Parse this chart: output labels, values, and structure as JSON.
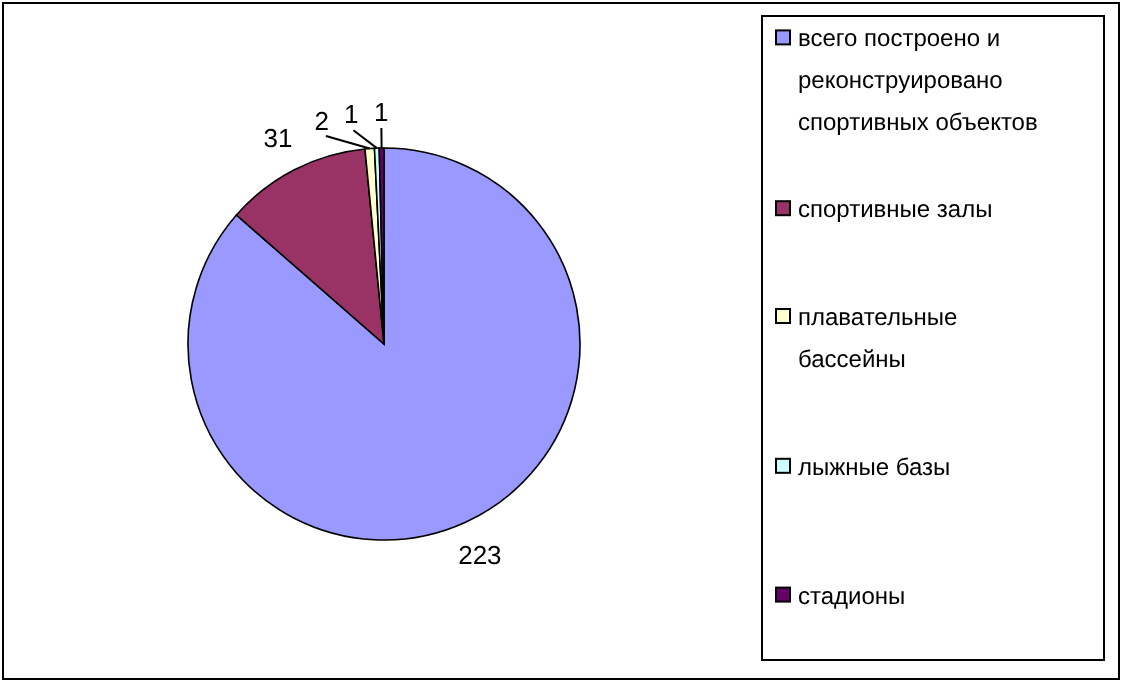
{
  "chart_data": {
    "type": "pie",
    "categories": [
      "всего построено и реконструировано спортивных объектов",
      "спортивные залы",
      "плавательные бассейны",
      "лыжные базы",
      "стадионы"
    ],
    "values": [
      223,
      31,
      2,
      1,
      1
    ],
    "colors": [
      "#9999ff",
      "#993366",
      "#ffffcc",
      "#ccffff",
      "#660066"
    ],
    "data_labels": true,
    "legend": "right"
  }
}
